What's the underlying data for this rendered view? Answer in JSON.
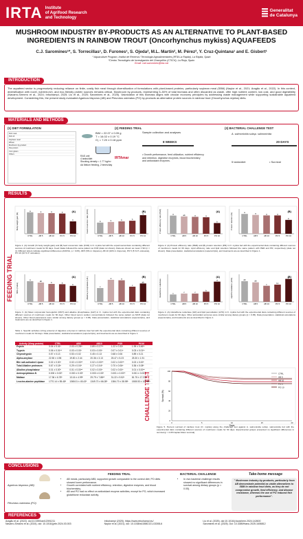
{
  "header": {
    "logo": "IRTA",
    "institute": "Institute\nof Agrifood Research\nand Technology",
    "gov": "Generalitat\nde Catalunya"
  },
  "title": "MUSHROOM INDUSTRY BY-PRODUCTS AS AN ALTERNATIVE TO PLANT-BASED INGREDIENTS IN RAINBOW TROUT (Oncorhynchus mykiss) AQUAFEEDS",
  "authors": "C.J. Saromines¹*, S. Torrecillas¹, D. Furones¹, S. Ojeda², M.L. Martín², M. Pérez², Y. Cruz-Quintana¹ and E. Gisbert¹",
  "aff1": "¹ Aquaculture Program, Institut de Recerca i Tecnologia Agroalimentàries (IRTA La Ràpita), La Ràpita, Spain",
  "aff2": "²Centro Tecnológico de Investigación del Champiñón (CTICH), La Rioja, Spain",
  "email": "Email: carl.saromines@irta.cat",
  "sections": {
    "intro": "INTRODUCTION",
    "mm": "MATERIALS AND METHODS",
    "results": "RESULTS",
    "concl": "CONCLUSIONS",
    "refs": "REFERENCES"
  },
  "intro_text": "The aquafeed sector is progressively reducing reliance on finite, costly fish meal through diversification of formulations with plant-based proteins, particularly soybean meal (SBM) (Naylor et al., 2021; Aragão et al., 2022). In this context, diversification with novel, nutrient-rich, and eco-friendly protein sources remains critical. Mushroom by-products, representing 5–50% of total biomass and often discarded as waste, offer high nutrient content, low cost, and good digestibility (Navarro-Sirmero et al., 2024; Infochampi, 2025; Liu et al., 2025; Saromines et al., 2025). Valorization of this biomass aligns with circular economy principles by addressing waste management while supporting sustainable aquafeed development. Considering this, the present study evaluated Agaricus bisporus (AB) and Pleurotus ostreatus (PO) by-products as alternative protein sources in rainbow trout (Oncorhynchus mykiss) diets.",
  "mm": {
    "s1": "(1) DIET FORMULATION",
    "s2": "(2) FEEDING TRIAL",
    "s3": "(3) BACTERIAL CHALLENGE TEST",
    "bw": "BWi = 22.07 ± 0.05 g",
    "temp": "T = 16.02 ± 0.19 °C",
    "o2": "O₂ = 7.20 ± 0.18 ppm",
    "ras": "RAS unit",
    "tanks": "4 tanks/diet",
    "density": "Stocking density = 1.77 kg/m³",
    "feeding": "Ad libitum feeding, 2 times/day",
    "irta": "IRTAmar",
    "sample": "Sample collection and analyses",
    "weeks": "8 WEEKS",
    "outcomes": "• Growth performance, feed utilization, nutrient efficiency and retention, digestive enzymes, blood biochemistry and antioxidant enzymes.",
    "bact": "A. salmonicida subsp. salmonicida",
    "days": "20 DAYS",
    "tanksdiet": "5 tanks/diet",
    "survival": "• Survival",
    "diet_rows": [
      "Fish meal",
      "Fish oil",
      "Soybean meal",
      "Wheat",
      "Mushroom by-product",
      "Pea protein",
      "Corn gluten",
      "Others"
    ]
  },
  "feeding_trial": "FEEDING TRIAL",
  "challenge": "CHALLENGE TEST",
  "diets": [
    "CTRL",
    "AB 5",
    "AB 10",
    "PO 5",
    "PO 10"
  ],
  "chart_data": [
    {
      "type": "bar",
      "title": "(A)",
      "ylabel": "Body weight gain (%)",
      "categories": [
        "CTRL",
        "AB 5",
        "AB 10",
        "PO 5",
        "PO 10"
      ],
      "values": [
        520,
        500,
        500,
        490,
        300
      ],
      "ylim": [
        0,
        600
      ],
      "letters": [
        "a",
        "a",
        "a",
        "a",
        "b"
      ]
    },
    {
      "type": "bar",
      "title": "(B)",
      "ylabel": "Feed conversion ratio (FCR)",
      "categories": [
        "CTRL",
        "AB 5",
        "AB 10",
        "PO 5",
        "PO 10"
      ],
      "values": [
        0.9,
        0.95,
        1.0,
        1.05,
        1.5
      ],
      "ylim": [
        0,
        2
      ],
      "letters": [
        "b",
        "b",
        "b",
        "b",
        "a"
      ]
    },
    {
      "type": "bar",
      "title": "(A)",
      "ylabel": "Protein efficiency ratio (PER)",
      "categories": [
        "CTRL",
        "AB 5",
        "AB 10",
        "PO 5",
        "PO 10"
      ],
      "values": [
        2.2,
        2.1,
        2.05,
        2.0,
        1.3
      ],
      "ylim": [
        0,
        3
      ],
      "letters": [
        "a",
        "ab",
        "a",
        "a",
        "b"
      ]
    },
    {
      "type": "bar",
      "title": "(B)",
      "ylabel": "Protein retention (%)",
      "categories": [
        "CTRL",
        "AB 5",
        "AB 10",
        "PO 5",
        "PO 10"
      ],
      "values": [
        40,
        38,
        37,
        37,
        28
      ],
      "ylim": [
        0,
        50
      ],
      "letters": [
        "a",
        "a",
        "a",
        "a",
        "b"
      ]
    },
    {
      "type": "bar",
      "title": "(A)",
      "ylabel": "MCH (Index)",
      "categories": [
        "CTRL",
        "AB 5",
        "AB 10",
        "PO 5",
        "PO 10"
      ],
      "values": [
        75,
        70,
        65,
        64,
        58
      ],
      "ylim": [
        0,
        100
      ],
      "letters": [
        "a",
        "ab",
        "b",
        "b",
        "b"
      ]
    },
    {
      "type": "bar",
      "title": "(B)",
      "ylabel": "Alkaline phosphatase (U/L)",
      "categories": [
        "CTRL",
        "AB 5",
        "AB 10",
        "PO 5",
        "PO 10"
      ],
      "values": [
        300,
        480,
        470,
        330,
        400
      ],
      "ylim": [
        0,
        600
      ],
      "letters": [
        "c",
        "a",
        "a",
        "c",
        "ab"
      ]
    },
    {
      "type": "bar",
      "title": "(A)",
      "ylabel": "Glutathione reductase",
      "categories": [
        "CTRL",
        "AB 5",
        "AB 10",
        "PO 5",
        "PO 10"
      ],
      "values": [
        40,
        45,
        45,
        55,
        110
      ],
      "ylim": [
        0,
        150
      ],
      "letters": [
        "c",
        "c",
        "c",
        "b",
        "a"
      ]
    },
    {
      "type": "bar",
      "title": "(B)",
      "ylabel": "Lipid Peroxidation (LPO)",
      "categories": [
        "CTRL",
        "AB 5",
        "AB 10",
        "PO 5",
        "PO 10"
      ],
      "values": [
        90,
        85,
        70,
        75,
        100
      ],
      "ylim": [
        0,
        120
      ],
      "letters": [
        "ab",
        "ab",
        "c",
        "bc",
        "a"
      ]
    },
    {
      "type": "line",
      "ylabel": "Survival (%)",
      "xlabel": "Days",
      "x": [
        0,
        2,
        4,
        6,
        8,
        10,
        12,
        14,
        16,
        18,
        20
      ],
      "ylim": [
        0,
        100
      ],
      "series": [
        {
          "name": "CTRL",
          "values": [
            100,
            100,
            95,
            90,
            88,
            86,
            85,
            85,
            85,
            85,
            85
          ]
        },
        {
          "name": "AB 5",
          "values": [
            100,
            100,
            95,
            90,
            88,
            87,
            86,
            86,
            86,
            86,
            86
          ]
        },
        {
          "name": "AB 10",
          "values": [
            100,
            100,
            93,
            88,
            86,
            85,
            84,
            84,
            84,
            84,
            84
          ]
        },
        {
          "name": "PO 5",
          "values": [
            100,
            100,
            92,
            85,
            82,
            80,
            79,
            79,
            79,
            79,
            79
          ]
        },
        {
          "name": "PO 10",
          "values": [
            100,
            98,
            90,
            82,
            78,
            76,
            75,
            75,
            75,
            75,
            75
          ]
        }
      ]
    }
  ],
  "fig1_cap": "Figure 1. (A) Growth (% body weight gain) and (B) feed conversion ratio (FCR) in O. mykiss fed with the experimental diets containing different sources of mushroom meals for 60 days. Feed intake followed the same pattern as FCR (data not shown). Data are shown as mean ± SD (n = 4). Different letters indicate significant differences (ANOVA, p < 0.05). AB 5 (5% A. bisporus), AB 10 (10% A. bisporus), PO 5 (5 % P. ostreatus), PO 10 (10 % P. ostreatus).",
  "fig2_cap": "Figure 2. (A) Protein efficiency ratio (PER) and (B) protein retention (PR) in O. mykiss fed with the experimental diets containing different sources of mushroom meals for 60 days. Lipid efficiency ratio and lipid retention followed the same pattern with PER and PR, respectively (data not shown). Data presentation, statistical annotations (superscripts), and treatments are as described in Figure 1.",
  "fig3_cap": "Figure 3. (A) Mean corpuscular hemoglobin (MCH) and alkaline phosphatase (ALP) in O. mykiss fed with the experimental diets containing different sources of mushroom meals for 60 days. Other blood serum sodium concentrations followed the same pattern as MCH (data not shown). Other blood parameters were similar among dietary groups (p > 0.05). Data presentation, statistical annotations (superscripts), and treatments are as described in Figure 1.",
  "fig4_cap": "Figure 4. (A) Glutathione reductase (GR) and lipid peroxidation (LPO) in O. mykiss fed with the experimental diets containing different sources of mushroom meals for 60 days. Other antioxidant enzymes were similar among dietary groups (p > 0.05). Data presentation, statistical annotations (superscripts), and treatments are as described in Figure 1.",
  "table": {
    "caption": "Table 1. Specific activities (U/mg protein)¹ of digestive enzymes in rainbow trout fed with the experimental diets containing different sources of mushroom meals for 60 days. Data presentation, statistical annotations (superscripts), and treatments are as described in Figure 1.",
    "headers": [
      "Activity (U/mg protein)",
      "CTRL",
      "AB5",
      "AB10",
      "PO5",
      "PO10"
    ],
    "rows": [
      [
        "Pepsin",
        "3.04 ± 0.41ᵃ",
        "2.03 ± 0.28ᵇᶜ",
        "2.89 ± 0.27ᵃᵇ",
        "1.22 ± 0.33ᶜ",
        "1.99 ± 0.46ᵇᶜ"
      ],
      [
        "Trypsin",
        "0.06 ± 0.01ᵃᵇ",
        "0.03 ± 0.00ᶜ",
        "0.03 ± 0.00ᶜ",
        "0.07 ± 0.01ᵃ",
        "0.03 ± 0.01ᵇᶜ"
      ],
      [
        "Chymotrypsin",
        "0.57 ± 0.13",
        "0.53 ± 0.02",
        "0.45 ± 0.13",
        "0.68 ± 0.06",
        "0.89 ± 0.21"
      ],
      [
        "Alpha-amylase",
        "22.50 ± 4.96",
        "19.80 ± 2.44",
        "20.36 ± 3.13",
        "25.47 ± 5.23",
        "25.30 ± 1.91"
      ],
      [
        "Bile salt-activated Lipase",
        "0.02 ± 0.00ᵃ",
        "0.02 ± 0.00ᵃᵇ",
        "0.02 ± 0.00ᵃᵇ",
        "0.02 ± 0.00ᵃᵇ",
        "0.02 ± 0.00ᵇ"
      ],
      [
        "Total Alkaline proteases",
        "0.67 ± 0.18ᵃ",
        "0.29 ± 0.04ᵇ",
        "0.27 ± 0.04ᵇ",
        "0.70 ± 0.06ᵃ",
        "0.36 ± 0.08ᵇ"
      ],
      [
        "Alkaline phosphatase",
        "0.01 ± 0.00ᵇ",
        "0.01 ± 0.00ᵃᵇ",
        "0.02 ± 0.00ᵃ",
        "0.02 ± 0.00ᵃ",
        "0.01 ± 0.00ᵃᵇ"
      ],
      [
        "Aminopeptidase-N",
        "0.000 ± 0.00ᵇ",
        "0.000 ± 0.00ᵇ",
        "0.000 ± 0.00ᵇ",
        "0.001 ± 0.00ᵃᵇ",
        "0.001 ± 0.00ᵃ"
      ],
      [
        "Maltase",
        "17.36 ± 6.78ᵇ",
        "13.16 ± 4.99ᵇ",
        "29.79 ± 7.88ᵃᵇ",
        "31.22 ± 9.52ᵃ",
        "81.75 ± 17.31ᵃ"
      ],
      [
        "Leucine-alanine peptidase",
        "1770.14 ± 55.48ᵇ",
        "1365.01 ± 45.43ᵇ",
        "1349.73 ± 66.28ᵇ",
        "1384.70 ± 38.98ᵇ",
        "1508.53 ± 107.84ᵃ"
      ]
    ]
  },
  "fig5_cap": "Figure 5. Percent survival of rainbow trout (O. mykiss) along the challenge test against A. salmonicida subsp. salmonicida fed with the experimental diets containing different sources of mushroom meals for 60 days. Experimental groups presented no significant differences in survival (p > 0.05 Kaplan-Meier survival).",
  "concl": {
    "species1": "Agaricus bisporus (AB)",
    "species2": "Pleurotus ostreatus (PO)",
    "ft_head": "FEEDING TRIAL",
    "bc_head": "BACTERIAL CHALLENGE",
    "tk_head": "Take-home message",
    "ft": [
      "AB meals, particularly AB5, supported growth comparable to the control diet; PO diets showed lower performance.",
      "Growth correlated with nutrient efficiency, retention, digestive enzymes, and blood biochemistry.",
      "AB and PO had no effect on antioxidant enzyme activities, except for PO, which increased glutathione reductase activity."
    ],
    "bc": [
      "In vivo bacterial challenge results showed no significant differences in survival among dietary groups (p > 0.05)."
    ],
    "tk": "\" Mushroom industry by-products, particularly from AB demonstrate potential as viable alternatives to SBM in rainbow trout diets, as they do not compromise growth, feed efficiency, and disease resistance, whereas the use of PO reduced fish performance\"."
  },
  "refs": [
    "Aragão et al. (2022). doi:10.3390/ani12091211",
    "Infochampi (2025). https://www.infochampi.eu/",
    "Liu et al. (2025). doi:10.1016/j.foodchem.2024.142600",
    "Navarro-Simarro et al. (2024). doi: 10.1016/j.jebr.2024.03.003",
    "Naylor et al. (2021). doi: 10.1038/s41586-021-03308-6",
    "Saromines et al. (2025). Doi: 10.3389/fnanu.2025.1606812"
  ]
}
